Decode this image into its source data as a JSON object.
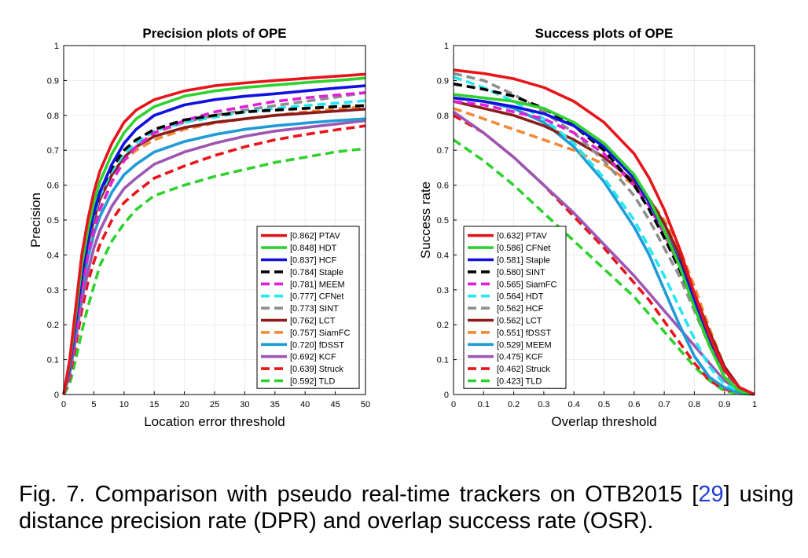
{
  "caption": {
    "prefix": "Fig. 7. Comparison with pseudo real-time trackers on OTB2015 [",
    "ref": "29",
    "suffix": "] using distance precision rate (DPR) and overlap success rate (OSR)."
  },
  "chart_data": [
    {
      "type": "line",
      "title": "Precision plots of OPE",
      "xlabel": "Location error threshold",
      "ylabel": "Precision",
      "xlim": [
        0,
        50
      ],
      "ylim": [
        0,
        1
      ],
      "xticks": [
        "0",
        "5",
        "10",
        "15",
        "20",
        "25",
        "30",
        "35",
        "40",
        "45",
        "50"
      ],
      "yticks": [
        "0",
        "0.1",
        "0.2",
        "0.3",
        "0.4",
        "0.5",
        "0.6",
        "0.7",
        "0.8",
        "0.9",
        "1"
      ],
      "grid": true,
      "legend": "bottom-right",
      "x": [
        0,
        1,
        2,
        3,
        4,
        5,
        6,
        8,
        10,
        12,
        15,
        20,
        25,
        30,
        35,
        40,
        45,
        50
      ],
      "series": [
        {
          "name": "[0.862] PTAV",
          "color": "#e8141b",
          "dash": "solid",
          "values": [
            0,
            0.1,
            0.25,
            0.4,
            0.5,
            0.58,
            0.64,
            0.72,
            0.78,
            0.815,
            0.845,
            0.87,
            0.885,
            0.893,
            0.9,
            0.906,
            0.912,
            0.918
          ]
        },
        {
          "name": "[0.848] HDT",
          "color": "#2fd12f",
          "dash": "solid",
          "values": [
            0,
            0.09,
            0.23,
            0.37,
            0.47,
            0.55,
            0.61,
            0.69,
            0.75,
            0.79,
            0.825,
            0.855,
            0.87,
            0.88,
            0.887,
            0.894,
            0.9,
            0.907
          ]
        },
        {
          "name": "[0.837] HCF",
          "color": "#1010e0",
          "dash": "solid",
          "values": [
            0,
            0.08,
            0.21,
            0.34,
            0.44,
            0.52,
            0.58,
            0.66,
            0.72,
            0.76,
            0.8,
            0.83,
            0.845,
            0.855,
            0.862,
            0.87,
            0.878,
            0.885
          ]
        },
        {
          "name": "[0.784] Staple",
          "color": "#000000",
          "dash": "dash",
          "values": [
            0,
            0.09,
            0.22,
            0.36,
            0.45,
            0.52,
            0.58,
            0.65,
            0.7,
            0.73,
            0.76,
            0.787,
            0.8,
            0.81,
            0.815,
            0.82,
            0.825,
            0.828
          ]
        },
        {
          "name": "[0.781] MEEM",
          "color": "#e01fd6",
          "dash": "dash",
          "values": [
            0,
            0.07,
            0.18,
            0.3,
            0.4,
            0.47,
            0.53,
            0.61,
            0.67,
            0.71,
            0.75,
            0.785,
            0.81,
            0.825,
            0.84,
            0.85,
            0.858,
            0.865
          ]
        },
        {
          "name": "[0.777] CFNet",
          "color": "#28e6ef",
          "dash": "dash",
          "values": [
            0,
            0.08,
            0.2,
            0.34,
            0.44,
            0.51,
            0.57,
            0.64,
            0.69,
            0.72,
            0.755,
            0.78,
            0.795,
            0.81,
            0.82,
            0.828,
            0.835,
            0.842
          ]
        },
        {
          "name": "[0.773] SINT",
          "color": "#8e8e8e",
          "dash": "dash",
          "values": [
            0,
            0.07,
            0.18,
            0.3,
            0.4,
            0.47,
            0.53,
            0.61,
            0.67,
            0.71,
            0.75,
            0.78,
            0.8,
            0.815,
            0.828,
            0.84,
            0.852,
            0.865
          ]
        },
        {
          "name": "[0.762] LCT",
          "color": "#8b1c1c",
          "dash": "solid",
          "values": [
            0,
            0.08,
            0.2,
            0.33,
            0.43,
            0.5,
            0.56,
            0.63,
            0.68,
            0.71,
            0.74,
            0.765,
            0.78,
            0.79,
            0.8,
            0.806,
            0.812,
            0.818
          ]
        },
        {
          "name": "[0.757] SiamFC",
          "color": "#f08a3a",
          "dash": "dash",
          "values": [
            0,
            0.07,
            0.18,
            0.3,
            0.4,
            0.47,
            0.53,
            0.61,
            0.67,
            0.7,
            0.73,
            0.76,
            0.778,
            0.79,
            0.8,
            0.81,
            0.818,
            0.825
          ]
        },
        {
          "name": "[0.720] fDSST",
          "color": "#1f9bd6",
          "dash": "solid",
          "values": [
            0,
            0.07,
            0.18,
            0.3,
            0.39,
            0.46,
            0.51,
            0.58,
            0.63,
            0.66,
            0.695,
            0.725,
            0.745,
            0.76,
            0.77,
            0.778,
            0.785,
            0.79
          ]
        },
        {
          "name": "[0.692] KCF",
          "color": "#9d57b3",
          "dash": "solid",
          "values": [
            0,
            0.06,
            0.16,
            0.27,
            0.35,
            0.42,
            0.47,
            0.54,
            0.59,
            0.62,
            0.66,
            0.695,
            0.72,
            0.74,
            0.755,
            0.765,
            0.775,
            0.785
          ]
        },
        {
          "name": "[0.639] Struck",
          "color": "#e8141b",
          "dash": "dash",
          "values": [
            0,
            0.05,
            0.14,
            0.24,
            0.32,
            0.38,
            0.43,
            0.5,
            0.55,
            0.58,
            0.62,
            0.655,
            0.685,
            0.71,
            0.73,
            0.745,
            0.758,
            0.77
          ]
        },
        {
          "name": "[0.592] TLD",
          "color": "#2fd12f",
          "dash": "dash",
          "values": [
            0,
            0.03,
            0.1,
            0.18,
            0.25,
            0.31,
            0.37,
            0.44,
            0.49,
            0.53,
            0.57,
            0.6,
            0.625,
            0.645,
            0.665,
            0.68,
            0.695,
            0.705
          ]
        }
      ]
    },
    {
      "type": "line",
      "title": "Success plots of OPE",
      "xlabel": "Overlap threshold",
      "ylabel": "Success rate",
      "xlim": [
        0,
        1
      ],
      "ylim": [
        0,
        1
      ],
      "xticks": [
        "0",
        "0.1",
        "0.2",
        "0.3",
        "0.4",
        "0.5",
        "0.6",
        "0.7",
        "0.8",
        "0.9",
        "1"
      ],
      "yticks": [
        "0",
        "0.1",
        "0.2",
        "0.3",
        "0.4",
        "0.5",
        "0.6",
        "0.7",
        "0.8",
        "0.9",
        "1"
      ],
      "grid": true,
      "legend": "bottom-left",
      "x": [
        0,
        0.1,
        0.2,
        0.3,
        0.4,
        0.5,
        0.6,
        0.65,
        0.7,
        0.75,
        0.8,
        0.85,
        0.9,
        0.95,
        1
      ],
      "series": [
        {
          "name": "[0.632] PTAV",
          "color": "#e8141b",
          "dash": "solid",
          "values": [
            0.93,
            0.92,
            0.905,
            0.88,
            0.84,
            0.78,
            0.69,
            0.62,
            0.53,
            0.42,
            0.29,
            0.17,
            0.07,
            0.02,
            0
          ]
        },
        {
          "name": "[0.586] CFNet",
          "color": "#2fd12f",
          "dash": "solid",
          "values": [
            0.86,
            0.85,
            0.84,
            0.82,
            0.78,
            0.72,
            0.63,
            0.56,
            0.47,
            0.37,
            0.25,
            0.14,
            0.05,
            0.01,
            0
          ]
        },
        {
          "name": "[0.581] Staple",
          "color": "#1010e0",
          "dash": "solid",
          "values": [
            0.85,
            0.84,
            0.825,
            0.805,
            0.77,
            0.71,
            0.62,
            0.55,
            0.47,
            0.38,
            0.27,
            0.16,
            0.07,
            0.02,
            0
          ]
        },
        {
          "name": "[0.580] SINT",
          "color": "#000000",
          "dash": "dash",
          "values": [
            0.89,
            0.875,
            0.855,
            0.82,
            0.77,
            0.7,
            0.6,
            0.53,
            0.45,
            0.36,
            0.26,
            0.16,
            0.07,
            0.02,
            0
          ]
        },
        {
          "name": "[0.565] SiamFC",
          "color": "#e01fd6",
          "dash": "dash",
          "values": [
            0.84,
            0.83,
            0.81,
            0.79,
            0.75,
            0.69,
            0.6,
            0.54,
            0.46,
            0.37,
            0.27,
            0.16,
            0.07,
            0.02,
            0
          ]
        },
        {
          "name": "[0.564] HDT",
          "color": "#28e6ef",
          "dash": "dash",
          "values": [
            0.91,
            0.88,
            0.84,
            0.79,
            0.72,
            0.62,
            0.5,
            0.42,
            0.34,
            0.25,
            0.16,
            0.08,
            0.03,
            0.01,
            0
          ]
        },
        {
          "name": "[0.562] HCF",
          "color": "#8e8e8e",
          "dash": "dash",
          "values": [
            0.92,
            0.9,
            0.86,
            0.81,
            0.75,
            0.67,
            0.57,
            0.5,
            0.42,
            0.34,
            0.24,
            0.14,
            0.06,
            0.02,
            0
          ]
        },
        {
          "name": "[0.562] LCT",
          "color": "#8b1c1c",
          "dash": "solid",
          "values": [
            0.84,
            0.82,
            0.8,
            0.77,
            0.73,
            0.68,
            0.61,
            0.56,
            0.49,
            0.4,
            0.29,
            0.18,
            0.08,
            0.02,
            0
          ]
        },
        {
          "name": "[0.551] fDSST",
          "color": "#f08a3a",
          "dash": "dash",
          "values": [
            0.82,
            0.79,
            0.76,
            0.73,
            0.7,
            0.66,
            0.6,
            0.56,
            0.5,
            0.42,
            0.31,
            0.19,
            0.08,
            0.02,
            0
          ]
        },
        {
          "name": "[0.529] MEEM",
          "color": "#1f9bd6",
          "dash": "solid",
          "values": [
            0.85,
            0.84,
            0.82,
            0.78,
            0.71,
            0.61,
            0.48,
            0.4,
            0.3,
            0.2,
            0.11,
            0.05,
            0.02,
            0.005,
            0
          ]
        },
        {
          "name": "[0.475] KCF",
          "color": "#9d57b3",
          "dash": "solid",
          "values": [
            0.81,
            0.75,
            0.68,
            0.6,
            0.52,
            0.43,
            0.34,
            0.29,
            0.24,
            0.19,
            0.14,
            0.09,
            0.04,
            0.01,
            0
          ]
        },
        {
          "name": "[0.462] Struck",
          "color": "#e8141b",
          "dash": "dash",
          "values": [
            0.8,
            0.75,
            0.68,
            0.6,
            0.51,
            0.42,
            0.32,
            0.27,
            0.21,
            0.15,
            0.09,
            0.04,
            0.015,
            0.005,
            0
          ]
        },
        {
          "name": "[0.423] TLD",
          "color": "#2fd12f",
          "dash": "dash",
          "values": [
            0.73,
            0.67,
            0.6,
            0.52,
            0.44,
            0.36,
            0.28,
            0.23,
            0.18,
            0.13,
            0.08,
            0.04,
            0.01,
            0.003,
            0
          ]
        }
      ]
    }
  ]
}
